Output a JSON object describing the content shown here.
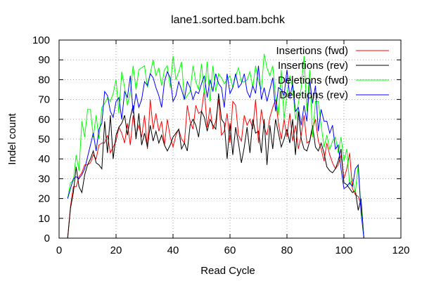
{
  "chart_data": {
    "type": "line",
    "title": "lane1.sorted.bam.bchk",
    "xlabel": "Read Cycle",
    "ylabel": "Indel count",
    "xlim": [
      0,
      120
    ],
    "ylim": [
      0,
      100
    ],
    "xticks": [
      0,
      20,
      40,
      60,
      80,
      100,
      120
    ],
    "yticks": [
      0,
      10,
      20,
      30,
      40,
      50,
      60,
      70,
      80,
      90,
      100
    ],
    "grid": true,
    "legend_position": "top-right",
    "x": [
      3,
      4,
      5,
      6,
      7,
      8,
      9,
      10,
      11,
      12,
      13,
      14,
      15,
      16,
      17,
      18,
      19,
      20,
      21,
      22,
      23,
      24,
      25,
      26,
      27,
      28,
      29,
      30,
      31,
      32,
      33,
      34,
      35,
      36,
      37,
      38,
      39,
      40,
      41,
      42,
      43,
      44,
      45,
      46,
      47,
      48,
      49,
      50,
      51,
      52,
      53,
      54,
      55,
      56,
      57,
      58,
      59,
      60,
      61,
      62,
      63,
      64,
      65,
      66,
      67,
      68,
      69,
      70,
      71,
      72,
      73,
      74,
      75,
      76,
      77,
      78,
      79,
      80,
      81,
      82,
      83,
      84,
      85,
      86,
      87,
      88,
      89,
      90,
      91,
      92,
      93,
      94,
      95,
      96,
      97,
      98,
      99,
      100,
      101,
      102,
      103,
      104,
      105,
      106,
      107
    ],
    "series": [
      {
        "name": "Insertions (fwd)",
        "color": "#ff0000",
        "values": [
          0,
          16,
          26,
          26,
          31,
          33,
          37,
          37,
          38,
          42,
          40,
          47,
          48,
          48,
          52,
          43,
          46,
          49,
          56,
          53,
          48,
          58,
          47,
          62,
          52,
          57,
          51,
          62,
          45,
          70,
          55,
          63,
          54,
          59,
          47,
          60,
          51,
          46,
          52,
          55,
          50,
          48,
          67,
          59,
          55,
          67,
          63,
          64,
          75,
          56,
          66,
          55,
          59,
          70,
          52,
          54,
          63,
          48,
          69,
          67,
          52,
          49,
          62,
          57,
          60,
          55,
          70,
          48,
          65,
          56,
          52,
          61,
          66,
          70,
          58,
          50,
          60,
          51,
          63,
          49,
          57,
          45,
          52,
          62,
          48,
          49,
          55,
          60,
          49,
          45,
          39,
          48,
          42,
          38,
          35,
          37,
          42,
          30,
          35,
          43,
          25,
          22,
          21,
          17,
          0
        ]
      },
      {
        "name": "Insertions (rev)",
        "color": "#000000",
        "values": [
          0,
          15,
          23,
          36,
          26,
          23,
          32,
          37,
          40,
          44,
          38,
          37,
          35,
          59,
          43,
          62,
          40,
          52,
          56,
          58,
          62,
          52,
          61,
          67,
          50,
          63,
          47,
          53,
          46,
          57,
          49,
          54,
          48,
          52,
          47,
          44,
          47,
          51,
          53,
          55,
          45,
          48,
          44,
          57,
          60,
          57,
          51,
          64,
          61,
          54,
          60,
          57,
          55,
          73,
          60,
          58,
          40,
          58,
          42,
          56,
          48,
          38,
          46,
          56,
          43,
          60,
          53,
          54,
          43,
          60,
          37,
          57,
          45,
          60,
          53,
          46,
          50,
          55,
          48,
          60,
          42,
          64,
          50,
          45,
          44,
          49,
          57,
          46,
          44,
          48,
          43,
          36,
          34,
          33,
          35,
          39,
          45,
          28,
          27,
          25,
          23,
          24,
          14,
          20,
          0
        ]
      },
      {
        "name": "Deletions (fwd)",
        "color": "#00ff00",
        "values": [
          20,
          28,
          29,
          42,
          34,
          59,
          51,
          65,
          65,
          51,
          62,
          50,
          66,
          68,
          71,
          69,
          73,
          80,
          63,
          84,
          76,
          67,
          74,
          87,
          75,
          85,
          86,
          87,
          76,
          83,
          90,
          82,
          86,
          77,
          85,
          87,
          76,
          92,
          80,
          84,
          89,
          70,
          72,
          74,
          87,
          79,
          75,
          88,
          73,
          89,
          69,
          87,
          74,
          83,
          81,
          78,
          80,
          82,
          76,
          82,
          86,
          79,
          79,
          80,
          84,
          76,
          87,
          79,
          75,
          93,
          86,
          82,
          87,
          72,
          62,
          85,
          60,
          73,
          82,
          76,
          60,
          68,
          76,
          92,
          64,
          85,
          51,
          69,
          69,
          57,
          46,
          52,
          45,
          49,
          51,
          43,
          51,
          39,
          45,
          27,
          30,
          23,
          37,
          15,
          0
        ]
      },
      {
        "name": "Deletions (rev)",
        "color": "#0000ff",
        "values": [
          20,
          25,
          30,
          31,
          30,
          32,
          35,
          41,
          47,
          53,
          44,
          55,
          58,
          74,
          72,
          64,
          61,
          69,
          71,
          60,
          74,
          71,
          82,
          63,
          73,
          66,
          70,
          79,
          77,
          83,
          81,
          76,
          72,
          66,
          79,
          84,
          81,
          69,
          72,
          79,
          75,
          70,
          79,
          76,
          70,
          74,
          73,
          78,
          82,
          71,
          80,
          74,
          83,
          78,
          76,
          66,
          83,
          73,
          76,
          83,
          76,
          78,
          83,
          74,
          71,
          77,
          73,
          87,
          70,
          76,
          69,
          75,
          81,
          64,
          76,
          75,
          72,
          85,
          71,
          78,
          64,
          66,
          57,
          67,
          59,
          80,
          68,
          77,
          54,
          65,
          59,
          59,
          53,
          57,
          45,
          47,
          35,
          25,
          26,
          28,
          26,
          35,
          37,
          13,
          0
        ]
      }
    ]
  }
}
